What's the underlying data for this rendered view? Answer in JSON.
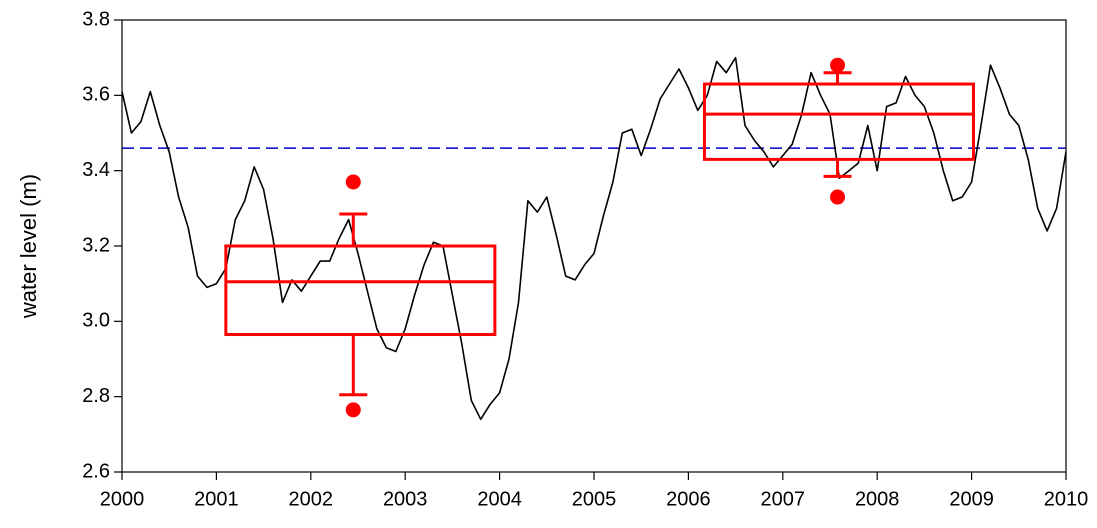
{
  "chart_data": {
    "type": "line",
    "y_label": "water level (m)",
    "xlim": [
      2000,
      2010
    ],
    "ylim": [
      2.6,
      3.8
    ],
    "xticks": [
      2000,
      2001,
      2002,
      2003,
      2004,
      2005,
      2006,
      2007,
      2008,
      2009,
      2010
    ],
    "yticks": [
      2.6,
      2.8,
      {
        "value": 3,
        "label": "3.0"
      },
      3.2,
      3.4,
      3.6,
      3.8
    ],
    "series": [
      {
        "color": "#000000",
        "x": [
          2000.0,
          2000.1,
          2000.2,
          2000.3,
          2000.4,
          2000.5,
          2000.6,
          2000.7,
          2000.8,
          2000.9,
          2001.0,
          2001.1,
          2001.2,
          2001.3,
          2001.4,
          2001.5,
          2001.6,
          2001.7,
          2001.8,
          2001.9,
          2002.0,
          2002.1,
          2002.2,
          2002.3,
          2002.4,
          2002.5,
          2002.6,
          2002.7,
          2002.8,
          2002.9,
          2003.0,
          2003.1,
          2003.2,
          2003.3,
          2003.4,
          2003.5,
          2003.6,
          2003.7,
          2003.8,
          2003.9,
          2004.0,
          2004.1,
          2004.2,
          2004.3,
          2004.4,
          2004.5,
          2004.6,
          2004.7,
          2004.8,
          2004.9,
          2005.0,
          2005.1,
          2005.2,
          2005.3,
          2005.4,
          2005.5,
          2005.6,
          2005.7,
          2005.8,
          2005.9,
          2006.0,
          2006.1,
          2006.2,
          2006.3,
          2006.4,
          2006.5,
          2006.6,
          2006.7,
          2006.8,
          2006.9,
          2007.0,
          2007.1,
          2007.2,
          2007.3,
          2007.4,
          2007.5,
          2007.6,
          2007.7,
          2007.8,
          2007.9,
          2008.0,
          2008.1,
          2008.2,
          2008.3,
          2008.4,
          2008.5,
          2008.6,
          2008.7,
          2008.8,
          2008.9,
          2009.0,
          2009.1,
          2009.2,
          2009.3,
          2009.4,
          2009.5,
          2009.6,
          2009.7,
          2009.8,
          2009.9,
          2010.0
        ],
        "values": [
          3.61,
          3.5,
          3.53,
          3.61,
          3.52,
          3.45,
          3.33,
          3.25,
          3.12,
          3.09,
          3.1,
          3.14,
          3.27,
          3.32,
          3.41,
          3.35,
          3.22,
          3.05,
          3.11,
          3.08,
          3.12,
          3.16,
          3.16,
          3.22,
          3.27,
          3.18,
          3.08,
          2.98,
          2.93,
          2.92,
          2.98,
          3.07,
          3.15,
          3.21,
          3.2,
          3.07,
          2.94,
          2.79,
          2.74,
          2.78,
          2.81,
          2.9,
          3.05,
          3.32,
          3.29,
          3.33,
          3.23,
          3.12,
          3.11,
          3.15,
          3.18,
          3.28,
          3.37,
          3.5,
          3.51,
          3.44,
          3.51,
          3.59,
          3.63,
          3.67,
          3.62,
          3.56,
          3.6,
          3.69,
          3.66,
          3.7,
          3.52,
          3.48,
          3.45,
          3.41,
          3.44,
          3.47,
          3.55,
          3.66,
          3.6,
          3.55,
          3.38,
          3.4,
          3.42,
          3.52,
          3.4,
          3.57,
          3.58,
          3.65,
          3.6,
          3.57,
          3.5,
          3.4,
          3.32,
          3.33,
          3.37,
          3.52,
          3.68,
          3.62,
          3.55,
          3.52,
          3.43,
          3.3,
          3.24,
          3.3,
          3.45
        ]
      }
    ],
    "reference_line": {
      "value": 3.46,
      "color": "#0000cc"
    },
    "boxplots": [
      {
        "color": "#ff0000",
        "x": 2002.45,
        "x_start": 2001.1,
        "x_end": 2003.95,
        "low": 2.805,
        "q1": 2.965,
        "median": 3.105,
        "q3": 3.2,
        "high": 3.285,
        "outliers": [
          2.765,
          3.37
        ]
      },
      {
        "color": "#ff0000",
        "x": 2007.58,
        "x_start": 2006.17,
        "x_end": 2009.02,
        "low": 3.385,
        "q1": 3.43,
        "median": 3.55,
        "q3": 3.63,
        "high": 3.66,
        "outliers": [
          3.33,
          3.68
        ]
      }
    ]
  }
}
